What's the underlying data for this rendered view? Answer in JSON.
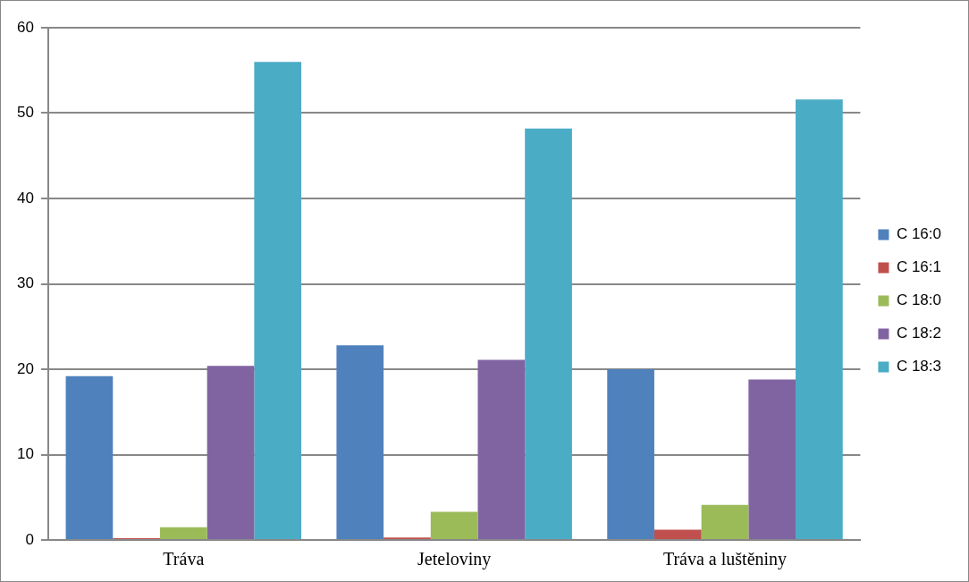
{
  "chart_data": {
    "type": "bar",
    "categories": [
      "Tráva",
      "Jeteloviny",
      "Tráva a luštěniny"
    ],
    "series": [
      {
        "name": "C 16:0",
        "color": "#4f81bd",
        "values": [
          19.2,
          22.8,
          20.0
        ]
      },
      {
        "name": "C 16:1",
        "color": "#c0504d",
        "values": [
          0.2,
          0.3,
          1.2
        ]
      },
      {
        "name": "C 18:0",
        "color": "#9bbb59",
        "values": [
          1.5,
          3.3,
          4.1
        ]
      },
      {
        "name": "C 18:2",
        "color": "#8064a2",
        "values": [
          20.4,
          21.1,
          18.8
        ]
      },
      {
        "name": "C 18:3",
        "color": "#4bacc6",
        "values": [
          56.0,
          48.2,
          51.6
        ]
      }
    ],
    "ylim": [
      0,
      60
    ],
    "yticks": [
      0,
      10,
      20,
      30,
      40,
      50,
      60
    ],
    "grid": "y",
    "legend": "right"
  }
}
